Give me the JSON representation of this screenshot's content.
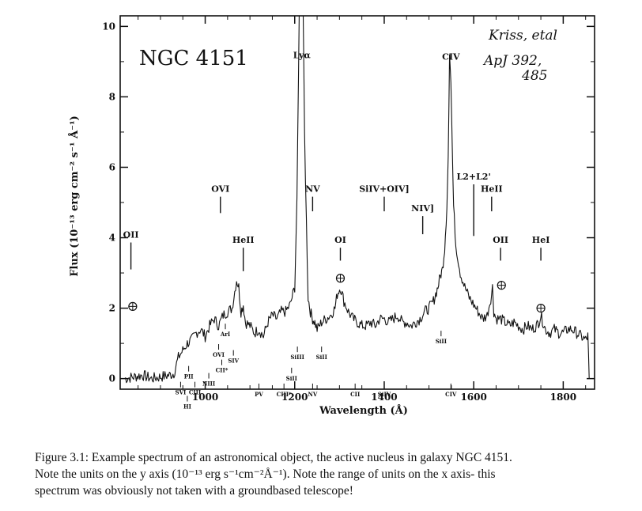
{
  "chart_data": {
    "type": "line",
    "title": "NGC 4151",
    "xlabel": "Wavelength (Å)",
    "ylabel": "Flux (10⁻¹³ erg cm⁻² s⁻¹ Å⁻¹)",
    "xlim": [
      810,
      1870
    ],
    "ylim": [
      -0.3,
      10.3
    ],
    "xticks": [
      1000,
      1200,
      1400,
      1600,
      1800
    ],
    "yticks": [
      0,
      2,
      4,
      6,
      8,
      10
    ],
    "grid": false,
    "legend": "none",
    "series": [
      {
        "x": [
          820,
          840,
          860,
          880,
          900,
          920,
          930,
          940,
          950,
          960,
          970,
          980,
          990,
          1000,
          1010,
          1020,
          1030,
          1040,
          1050,
          1060,
          1070,
          1075,
          1080,
          1085,
          1090,
          1100,
          1110,
          1120,
          1130,
          1140,
          1150,
          1160,
          1170,
          1180,
          1190,
          1200,
          1205,
          1210,
          1213,
          1216,
          1219,
          1222,
          1226,
          1230,
          1235,
          1240,
          1245,
          1250,
          1260,
          1270,
          1280,
          1290,
          1295,
          1302,
          1310,
          1320,
          1330,
          1340,
          1350,
          1360,
          1370,
          1380,
          1390,
          1400,
          1410,
          1420,
          1430,
          1440,
          1450,
          1460,
          1470,
          1480,
          1490,
          1500,
          1510,
          1515,
          1520,
          1525,
          1530,
          1535,
          1540,
          1543,
          1546,
          1549,
          1552,
          1555,
          1560,
          1570,
          1580,
          1590,
          1600,
          1610,
          1620,
          1630,
          1640,
          1642,
          1645,
          1650,
          1660,
          1670,
          1680,
          1690,
          1700,
          1710,
          1720,
          1730,
          1740,
          1745,
          1750,
          1755,
          1760,
          1770,
          1780,
          1790,
          1800,
          1810,
          1820,
          1830,
          1840,
          1850,
          1855,
          1858
        ],
        "y": [
          0.0,
          0.05,
          0.1,
          0.0,
          0.05,
          0.1,
          0.15,
          0.6,
          0.8,
          1.0,
          1.1,
          1.3,
          1.4,
          1.2,
          1.5,
          1.7,
          1.5,
          1.8,
          1.9,
          2.0,
          2.8,
          2.6,
          1.9,
          2.1,
          1.6,
          1.5,
          1.3,
          1.4,
          1.2,
          1.6,
          1.8,
          1.7,
          1.9,
          1.9,
          2.1,
          2.6,
          5.0,
          10.3,
          10.3,
          10.3,
          10.3,
          7.0,
          4.5,
          2.3,
          1.9,
          1.7,
          1.6,
          1.4,
          1.6,
          1.7,
          1.8,
          2.0,
          2.4,
          2.6,
          2.2,
          1.9,
          1.7,
          1.6,
          1.5,
          1.5,
          1.6,
          1.5,
          1.7,
          1.7,
          1.6,
          1.7,
          1.8,
          1.6,
          1.6,
          1.5,
          1.6,
          1.7,
          1.9,
          2.0,
          2.2,
          2.4,
          2.6,
          2.9,
          3.1,
          3.7,
          4.9,
          6.3,
          9.2,
          8.4,
          6.6,
          4.9,
          3.8,
          3.0,
          2.6,
          2.3,
          2.1,
          1.9,
          1.7,
          1.8,
          2.4,
          2.6,
          1.9,
          1.7,
          1.7,
          1.6,
          1.5,
          1.6,
          1.5,
          1.4,
          1.5,
          1.4,
          1.5,
          1.6,
          1.8,
          1.6,
          1.4,
          1.3,
          1.4,
          1.3,
          1.3,
          1.4,
          1.4,
          1.3,
          1.2,
          1.1,
          1.2,
          0.0
        ]
      }
    ],
    "line_labels": [
      {
        "label": "OII",
        "x": 834,
        "y": 4.0,
        "tick_to": 3.1
      },
      {
        "label": "OVI",
        "x": 1034,
        "y": 5.3,
        "tick_to": 4.7
      },
      {
        "label": "HeII",
        "x": 1085,
        "y": 3.85,
        "tick_to": 3.05
      },
      {
        "label": "Lyα",
        "x": 1216,
        "y": 9.1
      },
      {
        "label": "NV",
        "x": 1240,
        "y": 5.3,
        "tick_to": 4.75
      },
      {
        "label": "OI",
        "x": 1302,
        "y": 3.85,
        "tick_to": 3.35
      },
      {
        "label": "SiIV+OIV]",
        "x": 1400,
        "y": 5.3,
        "tick_to": 4.75
      },
      {
        "label": "NIV]",
        "x": 1486,
        "y": 4.75,
        "tick_to": 4.1
      },
      {
        "label": "CIV",
        "x": 1549,
        "y": 9.05
      },
      {
        "label": "L2+L2'",
        "x": 1600,
        "y": 5.65,
        "tick_to": 4.05
      },
      {
        "label": "HeII",
        "x": 1640,
        "y": 5.3,
        "tick_to": 4.75
      },
      {
        "label": "OII",
        "x": 1660,
        "y": 3.85,
        "tick_to": 3.35
      },
      {
        "label": "HeI",
        "x": 1750,
        "y": 3.85,
        "tick_to": 3.35
      }
    ],
    "absorption_labels": [
      {
        "label": "OVI",
        "x": 1030,
        "y": 0.62
      },
      {
        "label": "ArI",
        "x": 1045,
        "y": 1.2
      },
      {
        "label": "SIV",
        "x": 1063,
        "y": 0.45
      },
      {
        "label": "CII*",
        "x": 1037,
        "y": 0.18
      },
      {
        "label": "NIII",
        "x": 1008,
        "y": -0.2
      },
      {
        "label": "PII",
        "x": 963,
        "y": 0.0
      },
      {
        "label": "SVI",
        "x": 945,
        "y": -0.45
      },
      {
        "label": "CIII",
        "x": 977,
        "y": -0.45
      },
      {
        "label": "HI",
        "x": 960,
        "y": -0.85
      },
      {
        "label": "PV",
        "x": 1120,
        "y": -0.5
      },
      {
        "label": "CIII*",
        "x": 1176,
        "y": -0.5
      },
      {
        "label": "SiIII",
        "x": 1206,
        "y": 0.55
      },
      {
        "label": "SiII",
        "x": 1260,
        "y": 0.55
      },
      {
        "label": "SiII",
        "x": 1193,
        "y": -0.05
      },
      {
        "label": "NV",
        "x": 1240,
        "y": -0.5
      },
      {
        "label": "CII",
        "x": 1335,
        "y": -0.5
      },
      {
        "label": "SiIV",
        "x": 1400,
        "y": -0.5
      },
      {
        "label": "SiII",
        "x": 1527,
        "y": 1.0
      },
      {
        "label": "CIV",
        "x": 1549,
        "y": -0.5
      }
    ],
    "annotation_lines": [
      "Kriss, etal",
      "ApJ 392,",
      "485"
    ]
  },
  "caption": {
    "lines": [
      "Figure 3.1: Example spectrum of an astronomical object, the active nucleus in galaxy NGC 4151.",
      "Note the units on the y axis (10⁻¹³ erg s⁻¹cm⁻²Å⁻¹). Note the range of units on the x axis- this",
      "spectrum was obviously not taken with a groundbased telescope!"
    ]
  }
}
